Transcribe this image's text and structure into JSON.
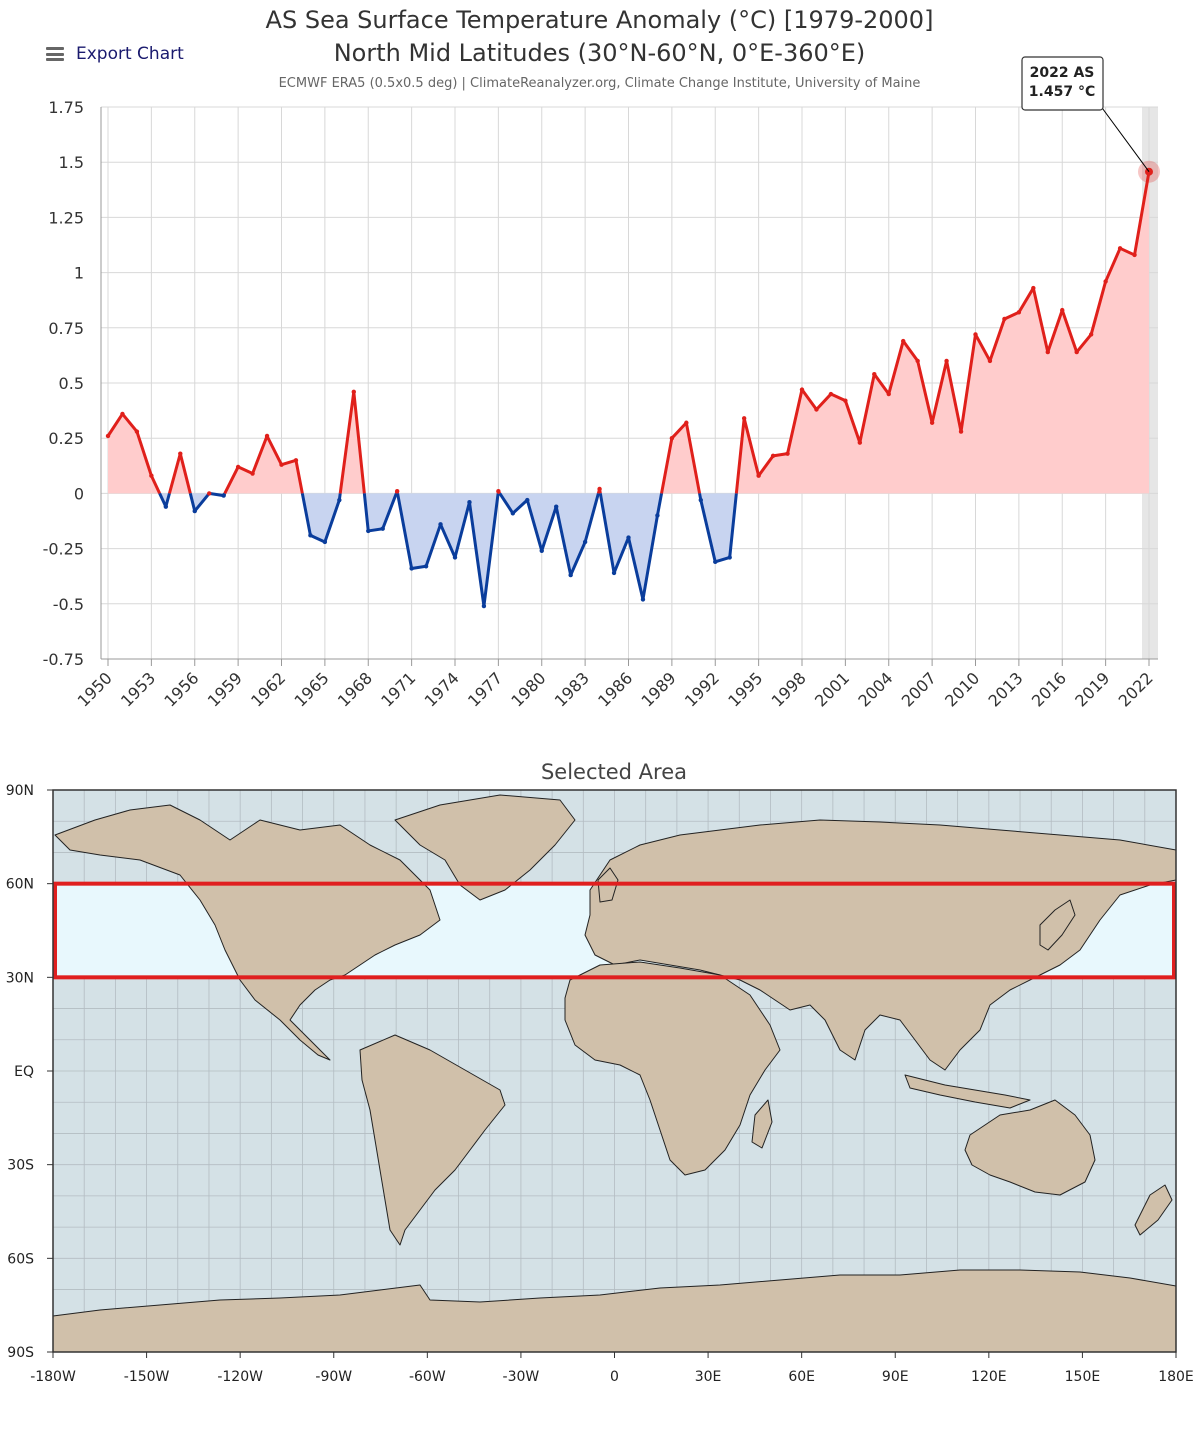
{
  "export_label": "Export Chart",
  "chart_data": [
    {
      "type": "line",
      "title_line1": "AS Sea Surface Temperature Anomaly (°C) [1979-2000]",
      "title_line2": "North Mid Latitudes (30°N-60°N, 0°E-360°E)",
      "subtitle": "ECMWF ERA5 (0.5x0.5 deg) | ClimateReanalyzer.org, Climate Change Institute, University of Maine",
      "x": [
        1950,
        1951,
        1952,
        1953,
        1954,
        1955,
        1956,
        1957,
        1958,
        1959,
        1960,
        1961,
        1962,
        1963,
        1964,
        1965,
        1966,
        1967,
        1968,
        1969,
        1970,
        1971,
        1972,
        1973,
        1974,
        1975,
        1976,
        1977,
        1978,
        1979,
        1980,
        1981,
        1982,
        1983,
        1984,
        1985,
        1986,
        1987,
        1988,
        1989,
        1990,
        1991,
        1992,
        1993,
        1994,
        1995,
        1996,
        1997,
        1998,
        1999,
        2000,
        2001,
        2002,
        2003,
        2004,
        2005,
        2006,
        2007,
        2008,
        2009,
        2010,
        2011,
        2012,
        2013,
        2014,
        2015,
        2016,
        2017,
        2018,
        2019,
        2020,
        2021,
        2022
      ],
      "values": [
        0.26,
        0.36,
        0.28,
        0.08,
        -0.06,
        0.18,
        -0.08,
        0.0,
        -0.01,
        0.12,
        0.09,
        0.26,
        0.13,
        0.15,
        -0.19,
        -0.22,
        -0.03,
        0.46,
        -0.17,
        -0.16,
        0.01,
        -0.34,
        -0.33,
        -0.14,
        -0.29,
        -0.04,
        -0.51,
        0.01,
        -0.09,
        -0.03,
        -0.26,
        -0.06,
        -0.37,
        -0.22,
        0.02,
        -0.36,
        -0.2,
        -0.48,
        -0.1,
        0.25,
        0.32,
        -0.03,
        -0.31,
        -0.29,
        0.34,
        0.08,
        0.17,
        0.18,
        0.47,
        0.38,
        0.45,
        0.42,
        0.23,
        0.54,
        0.45,
        0.69,
        0.6,
        0.32,
        0.6,
        0.28,
        0.72,
        0.6,
        0.79,
        0.82,
        0.93,
        0.64,
        0.83,
        0.64,
        0.72,
        0.96,
        1.11,
        1.08,
        1.457
      ],
      "y_ticks": [
        "1.75",
        "1.5",
        "1.25",
        "1",
        "0.75",
        "0.5",
        "0.25",
        "0",
        "-0.25",
        "-0.5",
        "-0.75"
      ],
      "x_ticks": [
        "1950",
        "1953",
        "1956",
        "1959",
        "1962",
        "1965",
        "1968",
        "1971",
        "1974",
        "1977",
        "1980",
        "1983",
        "1986",
        "1989",
        "1992",
        "1995",
        "1998",
        "2001",
        "2004",
        "2007",
        "2010",
        "2013",
        "2016",
        "2019",
        "2022"
      ],
      "ylim": [
        -0.75,
        1.75
      ],
      "xlim": [
        1950,
        2022
      ],
      "grid": true,
      "colors": {
        "positive": "#e0201b",
        "negative": "#0a3d9c",
        "positive_fill": "#ffcccc",
        "negative_fill": "#c8d4f0",
        "highlight_band": "#e6e6e6"
      },
      "tooltip": {
        "line1": "2022 AS",
        "line2": "1.457 °C"
      }
    },
    {
      "type": "map",
      "title": "Selected Area",
      "lon_ticks": [
        "-180W",
        "-150W",
        "-120W",
        "-90W",
        "-60W",
        "-30W",
        "0",
        "30E",
        "60E",
        "90E",
        "120E",
        "150E",
        "180E"
      ],
      "lat_ticks": [
        "90N",
        "60N",
        "30N",
        "EQ",
        "30S",
        "60S",
        "90S"
      ],
      "selection": {
        "lat_min": 30,
        "lat_max": 60,
        "lon_min": -180,
        "lon_max": 180
      },
      "colors": {
        "ocean": "#d4e1e6",
        "land": "#d0c0aa",
        "selection_fill": "#e8f8fd",
        "selection_border": "#e01f1f"
      }
    }
  ]
}
